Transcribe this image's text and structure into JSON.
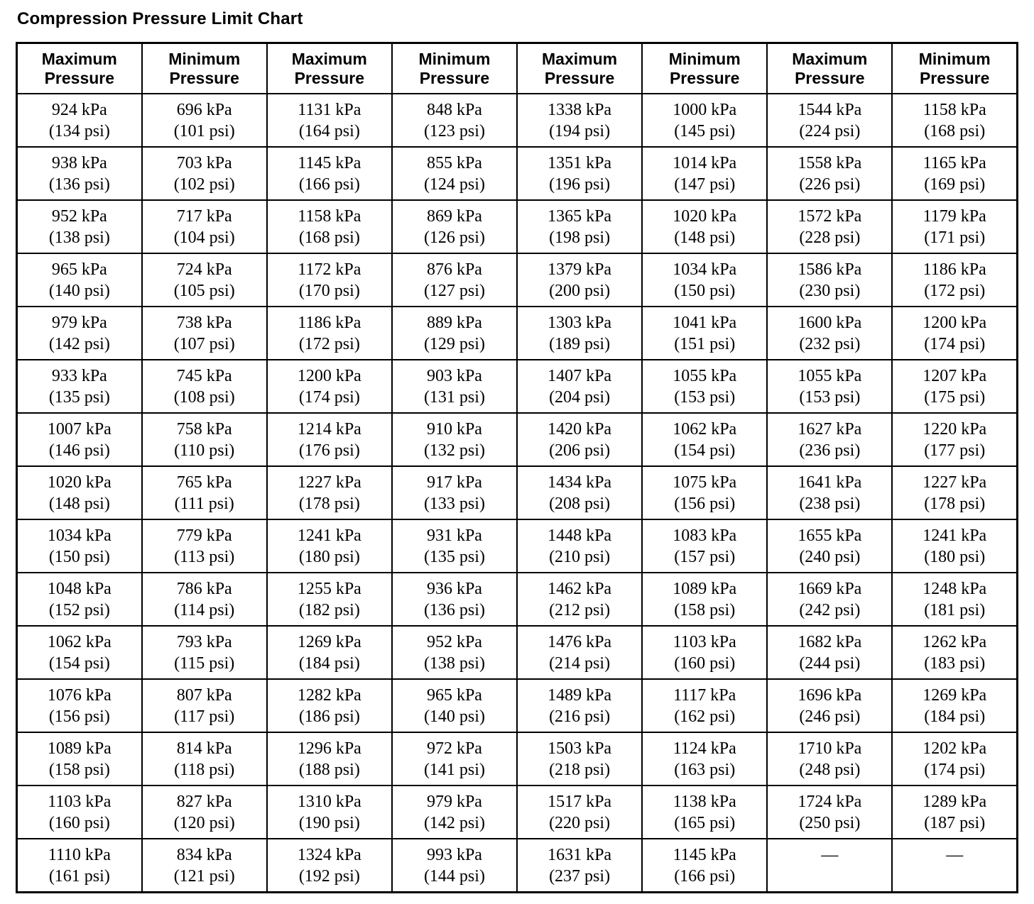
{
  "title": "Compression Pressure Limit Chart",
  "table": {
    "headers": [
      "Maximum Pressure",
      "Minimum Pressure",
      "Maximum Pressure",
      "Minimum Pressure",
      "Maximum Pressure",
      "Minimum Pressure",
      "Maximum Pressure",
      "Minimum Pressure"
    ],
    "rows": [
      [
        {
          "kpa": "924 kPa",
          "psi": "(134 psi)"
        },
        {
          "kpa": "696 kPa",
          "psi": "(101 psi)"
        },
        {
          "kpa": "1131 kPa",
          "psi": "(164 psi)"
        },
        {
          "kpa": "848 kPa",
          "psi": "(123 psi)"
        },
        {
          "kpa": "1338 kPa",
          "psi": "(194 psi)"
        },
        {
          "kpa": "1000 kPa",
          "psi": "(145 psi)"
        },
        {
          "kpa": "1544 kPa",
          "psi": "(224 psi)"
        },
        {
          "kpa": "1158 kPa",
          "psi": "(168 psi)"
        }
      ],
      [
        {
          "kpa": "938 kPa",
          "psi": "(136 psi)"
        },
        {
          "kpa": "703 kPa",
          "psi": "(102 psi)"
        },
        {
          "kpa": "1145 kPa",
          "psi": "(166 psi)"
        },
        {
          "kpa": "855 kPa",
          "psi": "(124 psi)"
        },
        {
          "kpa": "1351 kPa",
          "psi": "(196 psi)"
        },
        {
          "kpa": "1014 kPa",
          "psi": "(147 psi)"
        },
        {
          "kpa": "1558 kPa",
          "psi": "(226 psi)"
        },
        {
          "kpa": "1165 kPa",
          "psi": "(169 psi)"
        }
      ],
      [
        {
          "kpa": "952 kPa",
          "psi": "(138 psi)"
        },
        {
          "kpa": "717 kPa",
          "psi": "(104 psi)"
        },
        {
          "kpa": "1158 kPa",
          "psi": "(168 psi)"
        },
        {
          "kpa": "869 kPa",
          "psi": "(126 psi)"
        },
        {
          "kpa": "1365 kPa",
          "psi": "(198 psi)"
        },
        {
          "kpa": "1020 kPa",
          "psi": "(148 psi)"
        },
        {
          "kpa": "1572 kPa",
          "psi": "(228 psi)"
        },
        {
          "kpa": "1179 kPa",
          "psi": "(171 psi)"
        }
      ],
      [
        {
          "kpa": "965 kPa",
          "psi": "(140 psi)"
        },
        {
          "kpa": "724 kPa",
          "psi": "(105 psi)"
        },
        {
          "kpa": "1172 kPa",
          "psi": "(170 psi)"
        },
        {
          "kpa": "876 kPa",
          "psi": "(127 psi)"
        },
        {
          "kpa": "1379 kPa",
          "psi": "(200 psi)"
        },
        {
          "kpa": "1034 kPa",
          "psi": "(150 psi)"
        },
        {
          "kpa": "1586 kPa",
          "psi": "(230 psi)"
        },
        {
          "kpa": "1186 kPa",
          "psi": "(172 psi)"
        }
      ],
      [
        {
          "kpa": "979 kPa",
          "psi": "(142 psi)"
        },
        {
          "kpa": "738 kPa",
          "psi": "(107 psi)"
        },
        {
          "kpa": "1186 kPa",
          "psi": "(172 psi)"
        },
        {
          "kpa": "889 kPa",
          "psi": "(129 psi)"
        },
        {
          "kpa": "1303 kPa",
          "psi": "(189 psi)"
        },
        {
          "kpa": "1041 kPa",
          "psi": "(151 psi)"
        },
        {
          "kpa": "1600 kPa",
          "psi": "(232 psi)"
        },
        {
          "kpa": "1200 kPa",
          "psi": "(174 psi)"
        }
      ],
      [
        {
          "kpa": "933 kPa",
          "psi": "(135 psi)"
        },
        {
          "kpa": "745 kPa",
          "psi": "(108 psi)"
        },
        {
          "kpa": "1200 kPa",
          "psi": "(174 psi)"
        },
        {
          "kpa": "903 kPa",
          "psi": "(131 psi)"
        },
        {
          "kpa": "1407 kPa",
          "psi": "(204 psi)"
        },
        {
          "kpa": "1055 kPa",
          "psi": "(153 psi)"
        },
        {
          "kpa": "1055 kPa",
          "psi": "(153 psi)"
        },
        {
          "kpa": "1207 kPa",
          "psi": "(175 psi)"
        }
      ],
      [
        {
          "kpa": "1007 kPa",
          "psi": "(146 psi)"
        },
        {
          "kpa": "758 kPa",
          "psi": "(110 psi)"
        },
        {
          "kpa": "1214 kPa",
          "psi": "(176 psi)"
        },
        {
          "kpa": "910 kPa",
          "psi": "(132 psi)"
        },
        {
          "kpa": "1420 kPa",
          "psi": "(206 psi)"
        },
        {
          "kpa": "1062 kPa",
          "psi": "(154 psi)"
        },
        {
          "kpa": "1627 kPa",
          "psi": "(236 psi)"
        },
        {
          "kpa": "1220 kPa",
          "psi": "(177 psi)"
        }
      ],
      [
        {
          "kpa": "1020 kPa",
          "psi": "(148 psi)"
        },
        {
          "kpa": "765 kPa",
          "psi": "(111 psi)"
        },
        {
          "kpa": "1227 kPa",
          "psi": "(178 psi)"
        },
        {
          "kpa": "917 kPa",
          "psi": "(133 psi)"
        },
        {
          "kpa": "1434 kPa",
          "psi": "(208 psi)"
        },
        {
          "kpa": "1075 kPa",
          "psi": "(156 psi)"
        },
        {
          "kpa": "1641 kPa",
          "psi": "(238 psi)"
        },
        {
          "kpa": "1227 kPa",
          "psi": "(178 psi)"
        }
      ],
      [
        {
          "kpa": "1034 kPa",
          "psi": "(150 psi)"
        },
        {
          "kpa": "779 kPa",
          "psi": "(113 psi)"
        },
        {
          "kpa": "1241 kPa",
          "psi": "(180 psi)"
        },
        {
          "kpa": "931 kPa",
          "psi": "(135 psi)"
        },
        {
          "kpa": "1448 kPa",
          "psi": "(210 psi)"
        },
        {
          "kpa": "1083 kPa",
          "psi": "(157 psi)"
        },
        {
          "kpa": "1655 kPa",
          "psi": "(240 psi)"
        },
        {
          "kpa": "1241 kPa",
          "psi": "(180 psi)"
        }
      ],
      [
        {
          "kpa": "1048 kPa",
          "psi": "(152 psi)"
        },
        {
          "kpa": "786 kPa",
          "psi": "(114 psi)"
        },
        {
          "kpa": "1255 kPa",
          "psi": "(182 psi)"
        },
        {
          "kpa": "936 kPa",
          "psi": "(136 psi)"
        },
        {
          "kpa": "1462 kPa",
          "psi": "(212 psi)"
        },
        {
          "kpa": "1089 kPa",
          "psi": "(158 psi)"
        },
        {
          "kpa": "1669 kPa",
          "psi": "(242 psi)"
        },
        {
          "kpa": "1248 kPa",
          "psi": "(181 psi)"
        }
      ],
      [
        {
          "kpa": "1062 kPa",
          "psi": "(154 psi)"
        },
        {
          "kpa": "793 kPa",
          "psi": "(115 psi)"
        },
        {
          "kpa": "1269 kPa",
          "psi": "(184 psi)"
        },
        {
          "kpa": "952 kPa",
          "psi": "(138 psi)"
        },
        {
          "kpa": "1476 kPa",
          "psi": "(214 psi)"
        },
        {
          "kpa": "1103 kPa",
          "psi": "(160 psi)"
        },
        {
          "kpa": "1682 kPa",
          "psi": "(244 psi)"
        },
        {
          "kpa": "1262 kPa",
          "psi": "(183 psi)"
        }
      ],
      [
        {
          "kpa": "1076 kPa",
          "psi": "(156 psi)"
        },
        {
          "kpa": "807 kPa",
          "psi": "(117 psi)"
        },
        {
          "kpa": "1282 kPa",
          "psi": "(186 psi)"
        },
        {
          "kpa": "965 kPa",
          "psi": "(140 psi)"
        },
        {
          "kpa": "1489 kPa",
          "psi": "(216 psi)"
        },
        {
          "kpa": "1117 kPa",
          "psi": "(162 psi)"
        },
        {
          "kpa": "1696 kPa",
          "psi": "(246 psi)"
        },
        {
          "kpa": "1269 kPa",
          "psi": "(184 psi)"
        }
      ],
      [
        {
          "kpa": "1089 kPa",
          "psi": "(158 psi)"
        },
        {
          "kpa": "814 kPa",
          "psi": "(118 psi)"
        },
        {
          "kpa": "1296 kPa",
          "psi": "(188 psi)"
        },
        {
          "kpa": "972 kPa",
          "psi": "(141 psi)"
        },
        {
          "kpa": "1503 kPa",
          "psi": "(218 psi)"
        },
        {
          "kpa": "1124 kPa",
          "psi": "(163 psi)"
        },
        {
          "kpa": "1710 kPa",
          "psi": "(248 psi)"
        },
        {
          "kpa": "1202 kPa",
          "psi": "(174 psi)"
        }
      ],
      [
        {
          "kpa": "1103 kPa",
          "psi": "(160 psi)"
        },
        {
          "kpa": "827 kPa",
          "psi": "(120 psi)"
        },
        {
          "kpa": "1310 kPa",
          "psi": "(190 psi)"
        },
        {
          "kpa": "979 kPa",
          "psi": "(142 psi)"
        },
        {
          "kpa": "1517 kPa",
          "psi": "(220 psi)"
        },
        {
          "kpa": "1138 kPa",
          "psi": "(165 psi)"
        },
        {
          "kpa": "1724 kPa",
          "psi": "(250 psi)"
        },
        {
          "kpa": "1289 kPa",
          "psi": "(187 psi)"
        }
      ],
      [
        {
          "kpa": "1110 kPa",
          "psi": "(161 psi)"
        },
        {
          "kpa": "834 kPa",
          "psi": "(121 psi)"
        },
        {
          "kpa": "1324 kPa",
          "psi": "(192 psi)"
        },
        {
          "kpa": "993 kPa",
          "psi": "(144 psi)"
        },
        {
          "kpa": "1631 kPa",
          "psi": "(237 psi)"
        },
        {
          "kpa": "1145 kPa",
          "psi": "(166 psi)"
        },
        {
          "kpa": "—",
          "psi": ""
        },
        {
          "kpa": "—",
          "psi": ""
        }
      ]
    ]
  }
}
